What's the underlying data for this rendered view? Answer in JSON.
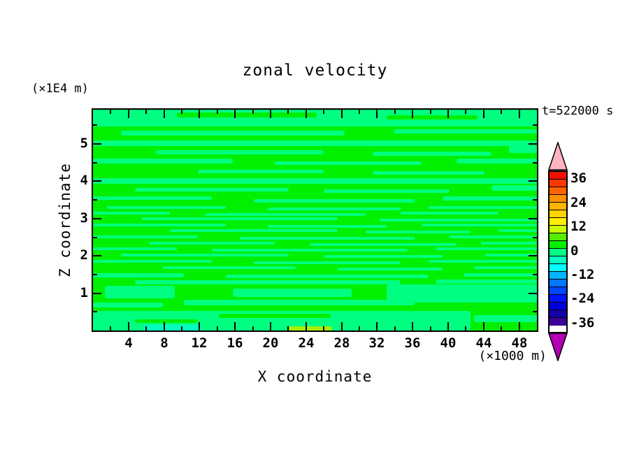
{
  "title": "zonal velocity",
  "annotations": {
    "y_unit": "(×1E4 m)",
    "x_unit": "(×1000 m)",
    "time": "t=522000 s"
  },
  "axes": {
    "x": {
      "label": "X coordinate",
      "range": [
        0,
        50
      ],
      "major_ticks": [
        4,
        8,
        12,
        16,
        20,
        24,
        28,
        32,
        36,
        40,
        44,
        48
      ],
      "minor_ticks": [
        2,
        6,
        10,
        14,
        18,
        22,
        26,
        30,
        34,
        38,
        42,
        46
      ]
    },
    "y": {
      "label": "Z coordinate",
      "range": [
        0,
        5.92
      ],
      "major_ticks": [
        1,
        2,
        3,
        4,
        5
      ],
      "minor_ticks": [
        0.5,
        1.5,
        2.5,
        3.5,
        4.5,
        5.5
      ]
    }
  },
  "colorbar": {
    "tick_values": [
      36,
      24,
      12,
      0,
      -12,
      -24,
      -36
    ],
    "tick_labels": [
      "36",
      "24",
      "12",
      "0",
      "-12",
      "-24",
      "-36"
    ],
    "over_arrow_color": "#FFB4C0",
    "under_arrow_color": "#B400B4",
    "levels": [
      {
        "min": 36,
        "max": 40,
        "color": "#F01000"
      },
      {
        "min": 32,
        "max": 36,
        "color": "#FF3800"
      },
      {
        "min": 28,
        "max": 32,
        "color": "#FF6400"
      },
      {
        "min": 24,
        "max": 28,
        "color": "#FF9100"
      },
      {
        "min": 20,
        "max": 24,
        "color": "#FFB400"
      },
      {
        "min": 16,
        "max": 20,
        "color": "#FFD200"
      },
      {
        "min": 12,
        "max": 16,
        "color": "#FFF000"
      },
      {
        "min": 8,
        "max": 12,
        "color": "#CCFF00"
      },
      {
        "min": 4,
        "max": 8,
        "color": "#55EE00"
      },
      {
        "min": 0,
        "max": 4,
        "color": "#00F000"
      },
      {
        "min": -4,
        "max": 0,
        "color": "#00FF80"
      },
      {
        "min": -8,
        "max": -4,
        "color": "#00FFC0"
      },
      {
        "min": -12,
        "max": -8,
        "color": "#00FFFF"
      },
      {
        "min": -16,
        "max": -12,
        "color": "#00B4FF"
      },
      {
        "min": -20,
        "max": -16,
        "color": "#0078FF"
      },
      {
        "min": -24,
        "max": -20,
        "color": "#0046FF"
      },
      {
        "min": -28,
        "max": -24,
        "color": "#0014FF"
      },
      {
        "min": -32,
        "max": -28,
        "color": "#0000DC"
      },
      {
        "min": -36,
        "max": -32,
        "color": "#1400AA"
      },
      {
        "min": -40,
        "max": -36,
        "color": "#3C0096"
      }
    ]
  },
  "chart_data": {
    "type": "heatmap",
    "subtype": "filled-contour",
    "title": "zonal velocity",
    "xlabel": "X coordinate",
    "ylabel": "Z coordinate",
    "x_units": "(×1000 m)",
    "y_units": "(×1E4 m)",
    "time_annotation": "t=522000 s",
    "x_range": [
      0,
      50
    ],
    "y_range": [
      0,
      6
    ],
    "contour_interval": 4,
    "level_range": [
      -40,
      40
    ],
    "colorbar_tick_values": [
      36,
      24,
      12,
      0,
      -12,
      -24,
      -36
    ],
    "field_summary": "zonal velocity nearly zero everywhere: horizontal wispy streaks alternate between the 0..4 level (green) and -4..0 level (spring green); thin patches of -8..-4 (aqua) and 4..12 (yellow-green) appear along the bottom boundary",
    "palette": {
      "base": "#00F000",
      "spring": "#00FF80",
      "cyan": "#00FFC0",
      "chartreuse": "#AAEE00"
    },
    "regions": {
      "spring_bands": [
        [
          0,
          0,
          635,
          24
        ],
        [
          40,
          30,
          320,
          7
        ],
        [
          430,
          28,
          205,
          6
        ],
        [
          0,
          44,
          635,
          8
        ],
        [
          90,
          58,
          240,
          6
        ],
        [
          400,
          60,
          170,
          6
        ],
        [
          595,
          52,
          40,
          10
        ],
        [
          0,
          70,
          200,
          7
        ],
        [
          260,
          74,
          210,
          5
        ],
        [
          520,
          70,
          115,
          7
        ],
        [
          150,
          86,
          180,
          5
        ],
        [
          400,
          88,
          160,
          5
        ],
        [
          0,
          98,
          635,
          8
        ],
        [
          60,
          112,
          220,
          5
        ],
        [
          330,
          114,
          180,
          5
        ],
        [
          570,
          108,
          65,
          8
        ],
        [
          0,
          124,
          170,
          5
        ],
        [
          230,
          128,
          230,
          5
        ],
        [
          500,
          124,
          135,
          6
        ],
        [
          20,
          138,
          170,
          4
        ],
        [
          250,
          140,
          190,
          4
        ],
        [
          480,
          138,
          155,
          4
        ],
        [
          0,
          146,
          110,
          4
        ],
        [
          160,
          148,
          230,
          4
        ],
        [
          440,
          146,
          140,
          4
        ],
        [
          70,
          154,
          280,
          4
        ],
        [
          410,
          156,
          225,
          4
        ],
        [
          0,
          163,
          190,
          4
        ],
        [
          250,
          165,
          170,
          4
        ],
        [
          470,
          163,
          165,
          4
        ],
        [
          110,
          171,
          240,
          4
        ],
        [
          390,
          173,
          150,
          4
        ],
        [
          580,
          171,
          55,
          4
        ],
        [
          0,
          180,
          150,
          4
        ],
        [
          210,
          182,
          250,
          4
        ],
        [
          510,
          180,
          125,
          4
        ],
        [
          80,
          189,
          180,
          4
        ],
        [
          310,
          191,
          210,
          4
        ],
        [
          555,
          189,
          80,
          4
        ],
        [
          0,
          197,
          120,
          4
        ],
        [
          170,
          199,
          280,
          4
        ],
        [
          490,
          197,
          145,
          4
        ],
        [
          40,
          206,
          240,
          4
        ],
        [
          330,
          208,
          170,
          4
        ],
        [
          560,
          206,
          75,
          4
        ],
        [
          0,
          215,
          170,
          4
        ],
        [
          230,
          217,
          210,
          4
        ],
        [
          480,
          215,
          155,
          4
        ],
        [
          100,
          224,
          190,
          4
        ],
        [
          350,
          226,
          150,
          4
        ],
        [
          545,
          224,
          90,
          4
        ],
        [
          0,
          234,
          130,
          6
        ],
        [
          190,
          236,
          290,
          5
        ],
        [
          530,
          234,
          105,
          5
        ],
        [
          60,
          244,
          380,
          6
        ],
        [
          490,
          243,
          145,
          6
        ],
        [
          17,
          252,
          100,
          18
        ],
        [
          200,
          256,
          170,
          12
        ],
        [
          420,
          250,
          215,
          26
        ],
        [
          130,
          272,
          330,
          8
        ],
        [
          0,
          276,
          100,
          7
        ],
        [
          0,
          288,
          540,
          28
        ],
        [
          545,
          294,
          90,
          10
        ]
      ],
      "green_patches": [
        [
          120,
          4,
          200,
          7
        ],
        [
          420,
          8,
          130,
          6
        ],
        [
          180,
          292,
          160,
          6
        ],
        [
          60,
          300,
          90,
          5
        ]
      ],
      "cyan_patches": [
        [
          72,
          308,
          82,
          8
        ]
      ],
      "chartreuse_patches": [
        [
          280,
          310,
          62,
          6
        ]
      ]
    }
  }
}
